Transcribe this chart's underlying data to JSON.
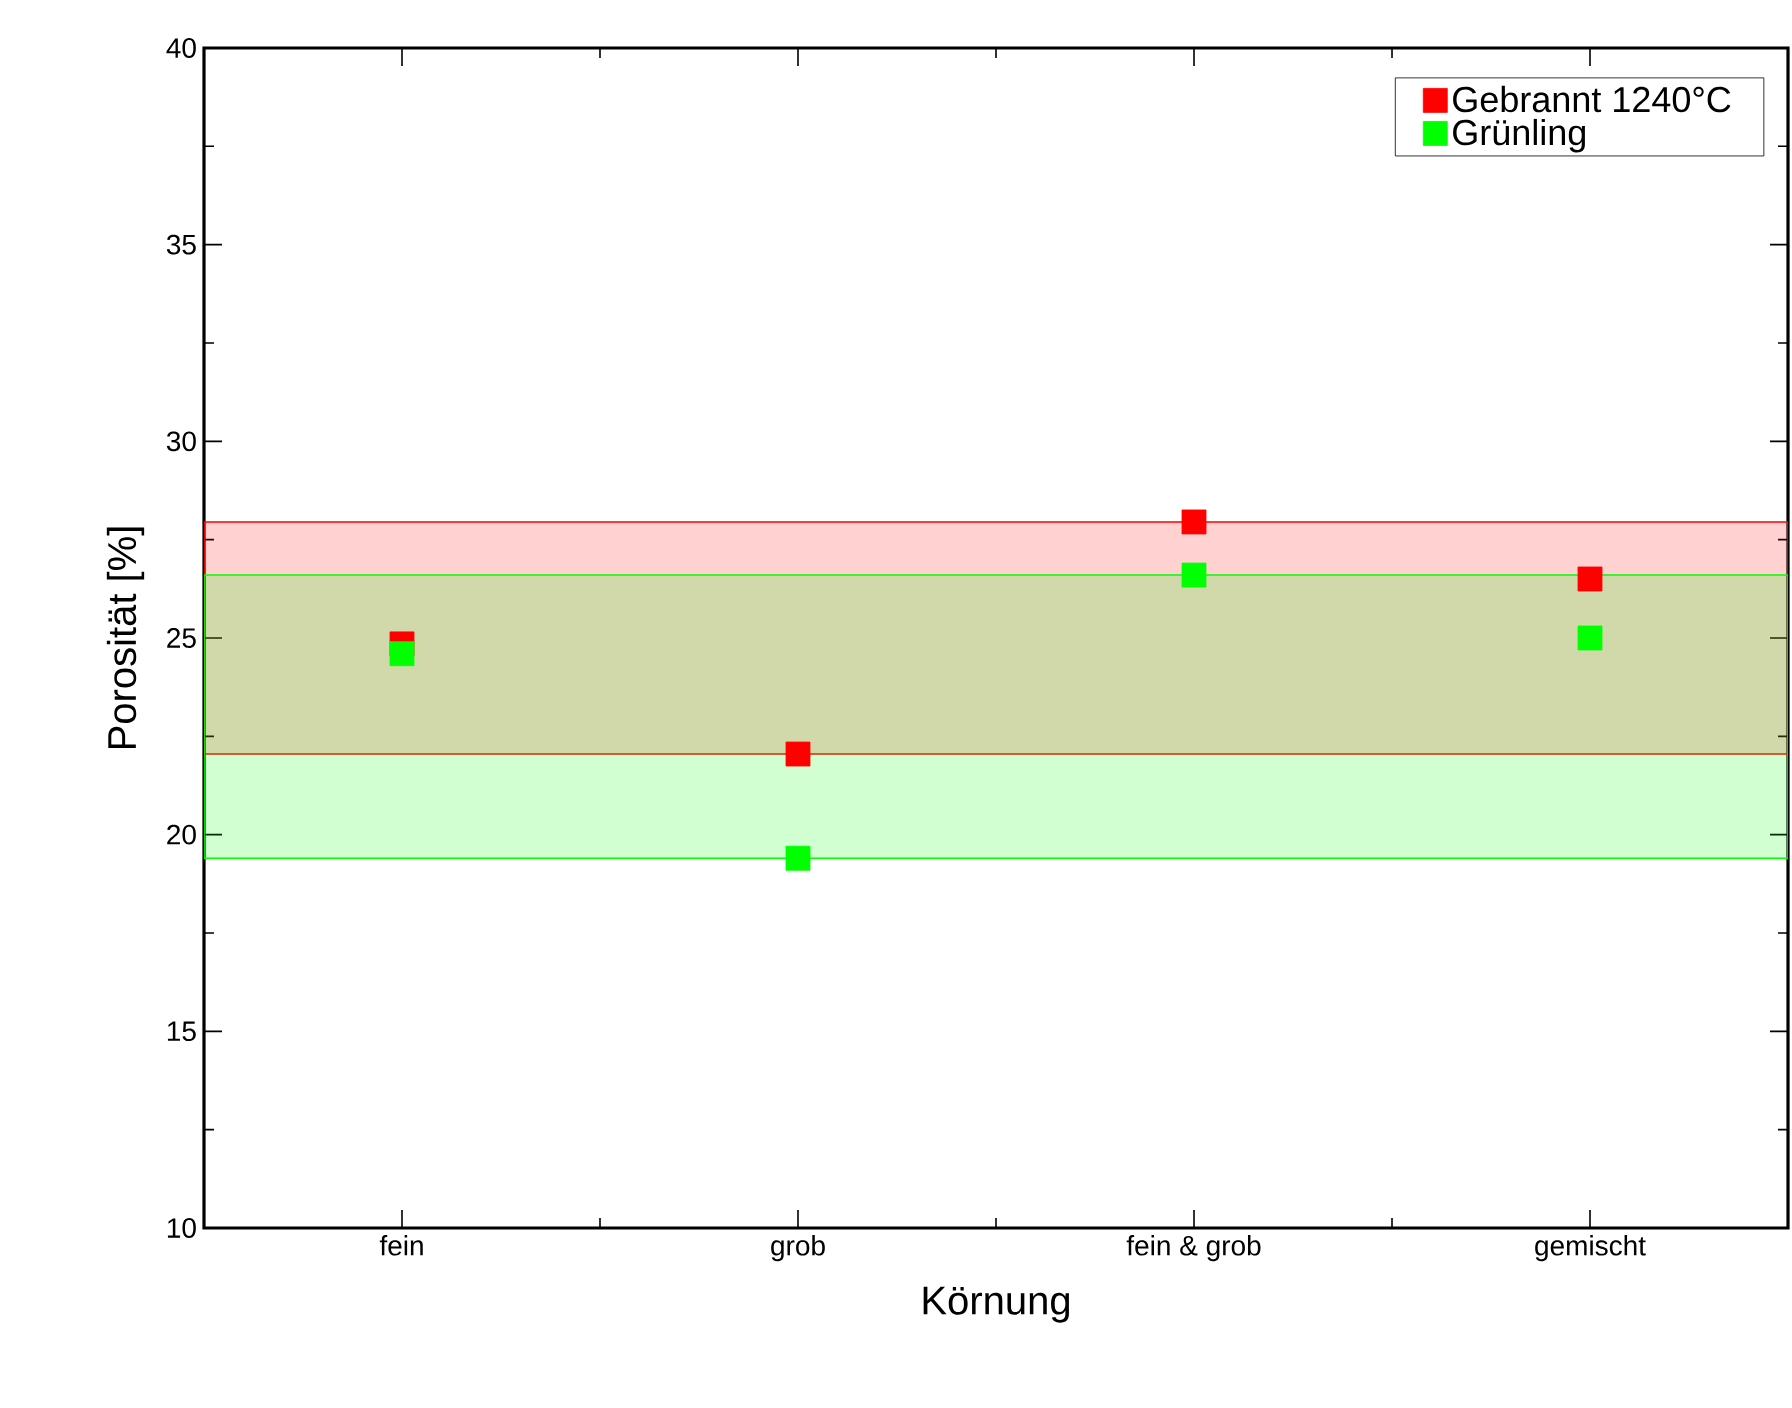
{
  "chart_data": {
    "type": "scatter",
    "xlabel": "Körnung",
    "ylabel": "Porosität [%]",
    "categories": [
      "fein",
      "grob",
      "fein & grob",
      "gemischt"
    ],
    "series": [
      {
        "name": "Gebrannt 1240°C",
        "color": "#ff0000",
        "values": [
          24.85,
          22.05,
          27.95,
          26.5
        ]
      },
      {
        "name": "Grünling",
        "color": "#00ff00",
        "values": [
          24.6,
          19.4,
          26.6,
          25.0
        ]
      }
    ],
    "bands": [
      {
        "axis": "y",
        "from": 22.05,
        "to": 27.95,
        "color": "#ff0000"
      },
      {
        "axis": "y",
        "from": 19.4,
        "to": 26.6,
        "color": "#00ff00"
      }
    ],
    "ylim": [
      10,
      40
    ],
    "yticks": [
      10,
      15,
      20,
      25,
      30,
      35,
      40
    ],
    "marker": "square",
    "legend": "top right",
    "grid": false
  }
}
